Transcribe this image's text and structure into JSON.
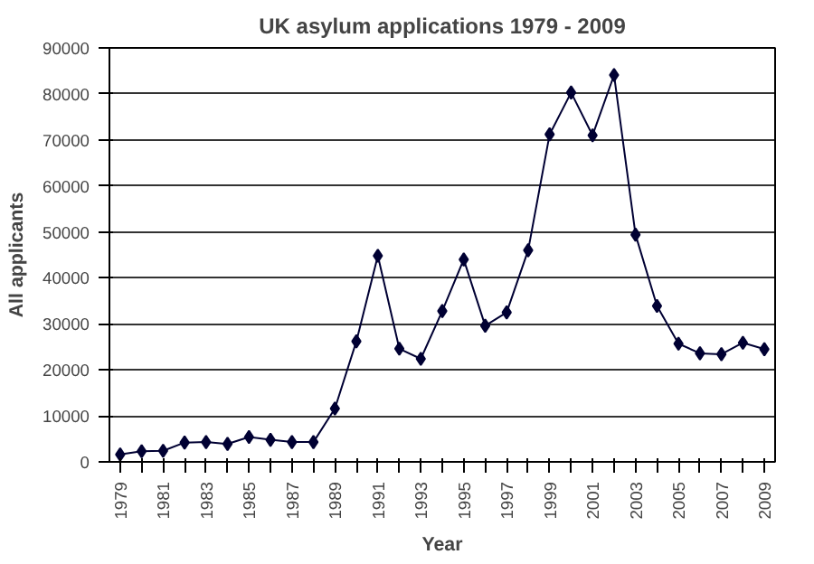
{
  "chart_data": {
    "type": "line",
    "title": "UK asylum applications 1979 - 2009",
    "xlabel": "Year",
    "ylabel": "All applicants",
    "categories": [
      "1979",
      null,
      "1981",
      null,
      "1983",
      null,
      "1985",
      null,
      "1987",
      null,
      "1989",
      null,
      "1991",
      null,
      "1993",
      null,
      "1995",
      null,
      "1997",
      null,
      "1999",
      null,
      "2001",
      null,
      "2003",
      null,
      "2005",
      null,
      "2007",
      null,
      "2009"
    ],
    "series": [
      {
        "color": "#000033",
        "values": [
          1600,
          2300,
          2400,
          4200,
          4300,
          3900,
          5400,
          4800,
          4300,
          4300,
          11600,
          26200,
          44800,
          24600,
          22400,
          32800,
          44000,
          29600,
          32500,
          46000,
          71200,
          80300,
          71000,
          84100,
          49400,
          33900,
          25700,
          23600,
          23400,
          25900,
          24500
        ]
      }
    ],
    "ylim": [
      0,
      90000
    ],
    "yticks": [
      0,
      10000,
      20000,
      30000,
      40000,
      50000,
      60000,
      70000,
      80000,
      90000
    ],
    "grid": "y",
    "marker": "diamond",
    "line_style": "solid"
  }
}
